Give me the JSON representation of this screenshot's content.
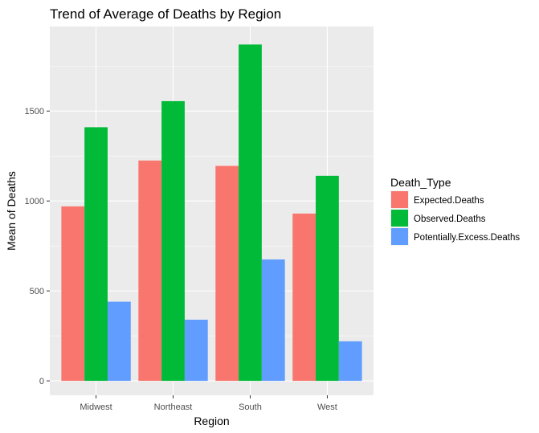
{
  "chart_data": {
    "type": "bar",
    "title": "Trend of Average of Deaths by Region",
    "xlabel": "Region",
    "ylabel": "Mean of Deaths",
    "categories": [
      "Midwest",
      "Northeast",
      "South",
      "West"
    ],
    "series": [
      {
        "name": "Expected.Deaths",
        "color": "#F8766D",
        "values": [
          970,
          1225,
          1195,
          930
        ]
      },
      {
        "name": "Observed.Deaths",
        "color": "#00BA38",
        "values": [
          1410,
          1555,
          1870,
          1140
        ]
      },
      {
        "name": "Potentially.Excess.Deaths",
        "color": "#619CFF",
        "values": [
          440,
          340,
          675,
          220
        ]
      }
    ],
    "ylim": [
      -80,
      1970
    ],
    "yticks": [
      0,
      500,
      1000,
      1500
    ],
    "ytick_labels": [
      "0",
      "500",
      "1000",
      "1500"
    ],
    "grid": true,
    "panel_background": "#EBEBEB",
    "legend_title": "Death_Type",
    "legend_position": "right"
  }
}
